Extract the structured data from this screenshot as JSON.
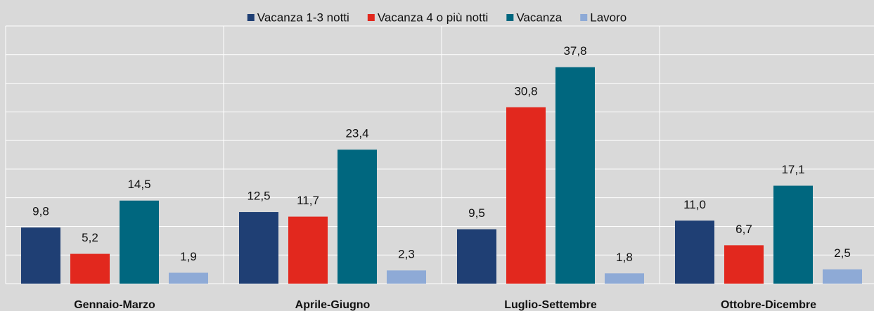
{
  "chart_data": {
    "type": "bar",
    "categories": [
      "Gennaio-Marzo",
      "Aprile-Giugno",
      "Luglio-Settembre",
      "Ottobre-Dicembre"
    ],
    "series": [
      {
        "name": "Vacanza 1-3 notti",
        "color": "#1f3f74",
        "values": [
          9.8,
          12.5,
          9.5,
          11.0
        ],
        "value_labels": [
          "9,8",
          "12,5",
          "9,5",
          "11,0"
        ]
      },
      {
        "name": "Vacanza 4 o più notti",
        "color": "#e2281e",
        "values": [
          5.2,
          11.7,
          30.8,
          6.7
        ],
        "value_labels": [
          "5,2",
          "11,7",
          "30,8",
          "6,7"
        ]
      },
      {
        "name": "Vacanza",
        "color": "#00677f",
        "values": [
          14.5,
          23.4,
          37.8,
          17.1
        ],
        "value_labels": [
          "14,5",
          "23,4",
          "37,8",
          "17,1"
        ]
      },
      {
        "name": "Lavoro",
        "color": "#8eaad6",
        "values": [
          1.9,
          2.3,
          1.8,
          2.5
        ],
        "value_labels": [
          "1,9",
          "2,3",
          "1,8",
          "2,5"
        ]
      }
    ],
    "ylim": [
      0,
      45
    ],
    "yticks": [
      0,
      5,
      10,
      15,
      20,
      25,
      30,
      35,
      40,
      45
    ],
    "grid": true,
    "legend": "top"
  }
}
